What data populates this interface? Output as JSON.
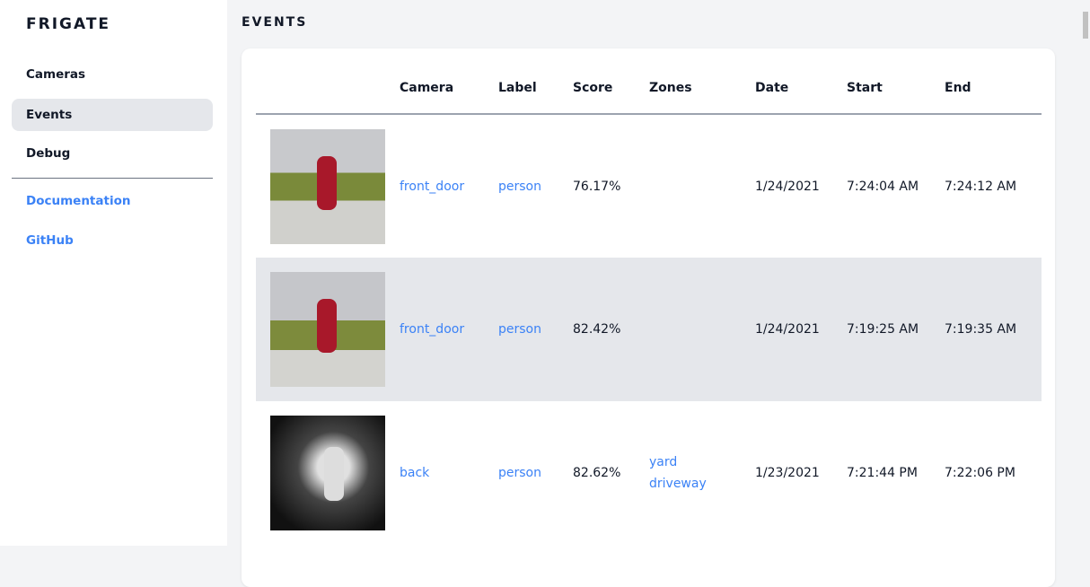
{
  "app": {
    "name": "FRIGATE"
  },
  "sidebar": {
    "items": [
      {
        "label": "Cameras"
      },
      {
        "label": "Events"
      },
      {
        "label": "Debug"
      }
    ],
    "links": [
      {
        "label": "Documentation"
      },
      {
        "label": "GitHub"
      }
    ]
  },
  "page": {
    "title": "EVENTS"
  },
  "table": {
    "headers": [
      "",
      "Camera",
      "Label",
      "Score",
      "Zones",
      "Date",
      "Start",
      "End"
    ],
    "rows": [
      {
        "camera": "front_door",
        "label": "person",
        "score": "76.17%",
        "zones": [
          "",
          ""
        ],
        "date": "1/24/2021",
        "start": "7:24:04 AM",
        "end": "7:24:12 AM"
      },
      {
        "camera": "front_door",
        "label": "person",
        "score": "82.42%",
        "zones": [
          "",
          ""
        ],
        "date": "1/24/2021",
        "start": "7:19:25 AM",
        "end": "7:19:35 AM"
      },
      {
        "camera": "back",
        "label": "person",
        "score": "82.62%",
        "zones": [
          "yard",
          "driveway"
        ],
        "date": "1/23/2021",
        "start": "7:21:44 PM",
        "end": "7:22:06 PM"
      }
    ]
  },
  "colors": {
    "accent": "#3b82f6",
    "active_bg": "#e5e7eb"
  }
}
